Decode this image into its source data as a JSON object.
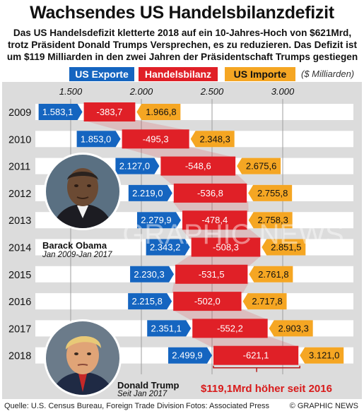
{
  "title": "Wachsendes US Handelsbilanzdefizit",
  "subtitle": "Das US Handelsdefizit kletterte 2018 auf ein 10-Jahres-Hoch von $621Mrd, trotz Präsident Donald Trumps Versprechen, es zu reduzieren. Das Defizit ist um $119 Milliarden in den zwei Jahren der Präsidentschaft Trumps gestiegen",
  "legend": {
    "exports": "US Exporte",
    "balance": "Handelsbilanz",
    "imports": "US Importe",
    "units": "($ Milliarden)"
  },
  "colors": {
    "exports": "#1565c0",
    "balance": "#e02027",
    "imports": "#f5a623",
    "panel": "#dcdcdc",
    "row": "#ffffff"
  },
  "presidents": {
    "obama": {
      "name": "Barack Obama",
      "term": "Jan 2009-Jan 2017"
    },
    "trump": {
      "name": "Donald Trump",
      "term": "Seit Jan 2017"
    }
  },
  "annotation": "$119,1Mrd höher seit 2016",
  "watermark": "GRAPHIC NEWS",
  "footer": {
    "source": "Quelle: U.S. Census Bureau, Foreign Trade Division",
    "photos": "Fotos: Associated Press",
    "copyright": "© GRAPHIC NEWS"
  },
  "chart_data": {
    "type": "bar",
    "title": "Wachsendes US Handelsbilanzdefizit",
    "xlabel": "($ Milliarden)",
    "xlim": [
      1250,
      3250
    ],
    "xticks": [
      1500,
      2000,
      2500,
      3000
    ],
    "xtick_labels": [
      "1.500",
      "2.000",
      "2.500",
      "3.000"
    ],
    "categories": [
      "2009",
      "2010",
      "2011",
      "2012",
      "2013",
      "2014",
      "2015",
      "2016",
      "2017",
      "2018"
    ],
    "series": [
      {
        "name": "US Exporte",
        "values": [
          1583.1,
          1853.0,
          2127.0,
          2219.0,
          2279.9,
          2343.2,
          2230.3,
          2215.8,
          2351.1,
          2499.9
        ],
        "labels": [
          "1.583,1",
          "1.853,0",
          "2.127,0",
          "2.219,0",
          "2.279,9",
          "2.343,2",
          "2.230,3",
          "2.215,8",
          "2.351,1",
          "2.499,9"
        ]
      },
      {
        "name": "Handelsbilanz",
        "values": [
          -383.7,
          -495.3,
          -548.6,
          -536.8,
          -478.4,
          -508.3,
          -531.5,
          -502.0,
          -552.2,
          -621.1
        ],
        "labels": [
          "-383,7",
          "-495,3",
          "-548,6",
          "-536,8",
          "-478,4",
          "-508,3",
          "-531,5",
          "-502,0",
          "-552,2",
          "-621,1"
        ]
      },
      {
        "name": "US Importe",
        "values": [
          1966.8,
          2348.3,
          2675.6,
          2755.8,
          2758.3,
          2851.5,
          2761.8,
          2717.8,
          2903.3,
          3121.0
        ],
        "labels": [
          "1.966,8",
          "2.348,3",
          "2.675,6",
          "2.755,8",
          "2.758,3",
          "2.851,5",
          "2.761,8",
          "2.717,8",
          "2.903,3",
          "3.121,0"
        ]
      }
    ]
  }
}
